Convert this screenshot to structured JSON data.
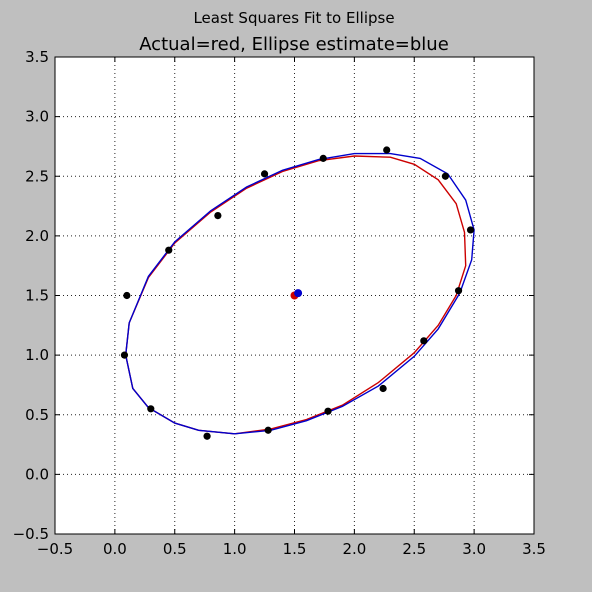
{
  "figure": {
    "suptitle": "Least Squares Fit to Ellipse",
    "title": "Actual=red, Ellipse estimate=blue"
  },
  "colors": {
    "background": "#bfbfbf",
    "actual": "#cc0000",
    "estimate": "#0000cc",
    "points": "#000000"
  },
  "chart_data": {
    "type": "scatter",
    "title": "Actual=red, Ellipse estimate=blue",
    "xlabel": "",
    "ylabel": "",
    "xlim": [
      -0.5,
      3.5
    ],
    "ylim": [
      -0.5,
      3.5
    ],
    "grid": true,
    "x_ticks": [
      -0.5,
      0.0,
      0.5,
      1.0,
      1.5,
      2.0,
      2.5,
      3.0,
      3.5
    ],
    "x_tick_labels": [
      "−0.5",
      "0.0",
      "0.5",
      "1.0",
      "1.5",
      "2.0",
      "2.5",
      "3.0",
      "3.5"
    ],
    "y_ticks": [
      -0.5,
      0.0,
      0.5,
      1.0,
      1.5,
      2.0,
      2.5,
      3.0,
      3.5
    ],
    "y_tick_labels": [
      "−0.5",
      "0.0",
      "0.5",
      "1.0",
      "1.5",
      "2.0",
      "2.5",
      "3.0",
      "3.5"
    ],
    "series": [
      {
        "kind": "line",
        "color": "#cc0000",
        "points": [
          [
            1.0,
            0.34
          ],
          [
            1.3,
            0.38
          ],
          [
            1.6,
            0.46
          ],
          [
            1.9,
            0.58
          ],
          [
            2.2,
            0.77
          ],
          [
            2.5,
            1.02
          ],
          [
            2.7,
            1.25
          ],
          [
            2.85,
            1.5
          ],
          [
            2.93,
            1.75
          ],
          [
            2.92,
            2.03
          ],
          [
            2.85,
            2.27
          ],
          [
            2.7,
            2.47
          ],
          [
            2.5,
            2.6
          ],
          [
            2.3,
            2.66
          ],
          [
            2.0,
            2.67
          ],
          [
            1.7,
            2.63
          ],
          [
            1.4,
            2.54
          ],
          [
            1.1,
            2.4
          ],
          [
            0.8,
            2.2
          ],
          [
            0.5,
            1.94
          ],
          [
            0.28,
            1.65
          ],
          [
            0.12,
            1.27
          ],
          [
            0.09,
            1.0
          ],
          [
            0.15,
            0.72
          ],
          [
            0.28,
            0.56
          ],
          [
            0.5,
            0.43
          ],
          [
            0.7,
            0.37
          ],
          [
            1.0,
            0.34
          ]
        ],
        "center": [
          1.5,
          1.5
        ]
      },
      {
        "kind": "line",
        "color": "#0000cc",
        "points": [
          [
            1.0,
            0.34
          ],
          [
            1.3,
            0.37
          ],
          [
            1.6,
            0.45
          ],
          [
            1.9,
            0.57
          ],
          [
            2.2,
            0.74
          ],
          [
            2.5,
            0.99
          ],
          [
            2.7,
            1.22
          ],
          [
            2.88,
            1.52
          ],
          [
            2.98,
            1.8
          ],
          [
            3.0,
            2.05
          ],
          [
            2.93,
            2.3
          ],
          [
            2.78,
            2.52
          ],
          [
            2.55,
            2.65
          ],
          [
            2.3,
            2.69
          ],
          [
            2.0,
            2.69
          ],
          [
            1.7,
            2.64
          ],
          [
            1.4,
            2.55
          ],
          [
            1.1,
            2.41
          ],
          [
            0.8,
            2.21
          ],
          [
            0.5,
            1.95
          ],
          [
            0.28,
            1.66
          ],
          [
            0.12,
            1.27
          ],
          [
            0.09,
            1.0
          ],
          [
            0.15,
            0.72
          ],
          [
            0.28,
            0.56
          ],
          [
            0.5,
            0.43
          ],
          [
            0.7,
            0.37
          ],
          [
            1.0,
            0.34
          ]
        ],
        "center": [
          1.53,
          1.52
        ]
      },
      {
        "kind": "scatter",
        "color": "#000000",
        "points": [
          [
            0.08,
            1.0
          ],
          [
            0.1,
            1.5
          ],
          [
            0.3,
            0.55
          ],
          [
            0.45,
            1.88
          ],
          [
            0.77,
            0.32
          ],
          [
            0.86,
            2.17
          ],
          [
            1.25,
            2.52
          ],
          [
            1.28,
            0.37
          ],
          [
            1.74,
            2.65
          ],
          [
            1.78,
            0.53
          ],
          [
            2.24,
            0.72
          ],
          [
            2.27,
            2.72
          ],
          [
            2.58,
            1.12
          ],
          [
            2.76,
            2.5
          ],
          [
            2.87,
            1.54
          ],
          [
            2.97,
            2.05
          ]
        ]
      }
    ]
  }
}
